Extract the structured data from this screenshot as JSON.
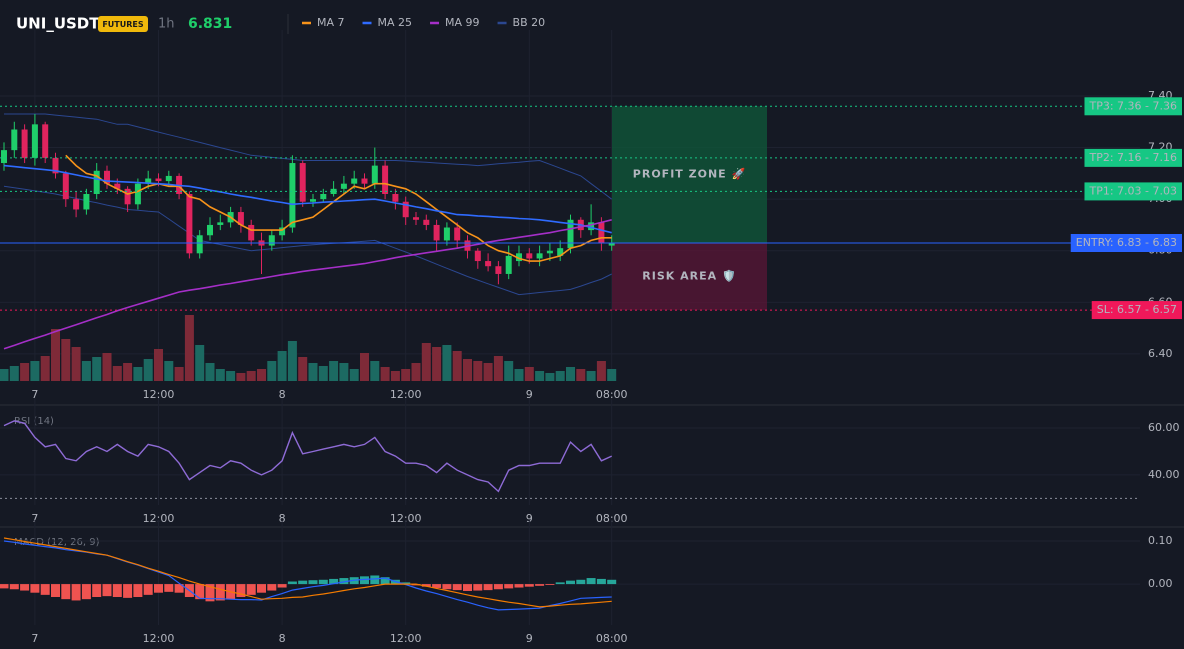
{
  "header": {
    "symbol": "UNI_USDT",
    "badge": "FUTURES",
    "interval": "1h",
    "price": 6.831
  },
  "chart_data": [
    {
      "type": "candlestick",
      "categories": [
        null,
        null,
        null,
        "7",
        null,
        null,
        null,
        null,
        null,
        null,
        null,
        null,
        null,
        null,
        null,
        "12:00",
        null,
        null,
        null,
        null,
        null,
        null,
        null,
        null,
        null,
        null,
        null,
        "8",
        null,
        null,
        null,
        null,
        null,
        null,
        null,
        null,
        null,
        null,
        null,
        "12:00",
        null,
        null,
        null,
        null,
        null,
        null,
        null,
        null,
        null,
        null,
        null,
        "9",
        null,
        null,
        null,
        null,
        null,
        null,
        null,
        "08:00"
      ],
      "open": [
        7.14,
        7.19,
        7.27,
        7.16,
        7.29,
        7.16,
        7.1,
        7.0,
        6.96,
        7.02,
        7.11,
        7.06,
        7.04,
        6.98,
        7.06,
        7.08,
        7.07,
        7.09,
        7.02,
        6.79,
        6.86,
        6.9,
        6.91,
        6.95,
        6.9,
        6.84,
        6.82,
        6.86,
        6.89,
        7.14,
        6.99,
        7.0,
        7.02,
        7.04,
        7.06,
        7.08,
        7.06,
        7.13,
        7.02,
        6.99,
        6.93,
        6.92,
        6.9,
        6.84,
        6.89,
        6.84,
        6.8,
        6.76,
        6.74,
        6.71,
        6.76,
        6.79,
        6.77,
        6.79,
        6.78,
        6.81,
        6.92,
        6.88,
        6.91,
        6.82
      ],
      "high": [
        7.22,
        7.3,
        7.29,
        7.33,
        7.3,
        7.18,
        7.11,
        7.03,
        7.04,
        7.14,
        7.13,
        7.08,
        7.05,
        7.08,
        7.11,
        7.1,
        7.11,
        7.1,
        7.03,
        6.88,
        6.93,
        6.94,
        6.97,
        6.97,
        6.92,
        6.87,
        6.88,
        6.92,
        7.17,
        7.15,
        7.02,
        7.04,
        7.07,
        7.09,
        7.11,
        7.1,
        7.2,
        7.15,
        7.04,
        7.01,
        6.95,
        6.94,
        6.92,
        6.91,
        6.91,
        6.86,
        6.81,
        6.79,
        6.76,
        6.82,
        6.82,
        6.81,
        6.82,
        6.83,
        6.84,
        6.94,
        6.93,
        6.98,
        6.93,
        6.86
      ],
      "low": [
        7.11,
        7.16,
        7.14,
        7.13,
        7.14,
        7.08,
        6.97,
        6.93,
        6.94,
        7.0,
        7.04,
        7.02,
        6.95,
        6.96,
        7.04,
        7.05,
        7.05,
        7.0,
        6.77,
        6.77,
        6.84,
        6.88,
        6.89,
        6.87,
        6.82,
        6.71,
        6.8,
        6.84,
        6.87,
        6.97,
        6.97,
        6.99,
        7.01,
        7.02,
        7.04,
        7.04,
        7.04,
        7.0,
        6.96,
        6.9,
        6.9,
        6.88,
        6.8,
        6.82,
        6.81,
        6.77,
        6.73,
        6.72,
        6.67,
        6.69,
        6.74,
        6.75,
        6.74,
        6.76,
        6.76,
        6.79,
        6.85,
        6.86,
        6.8,
        6.8
      ],
      "close": [
        7.19,
        7.27,
        7.16,
        7.29,
        7.16,
        7.1,
        7.0,
        6.96,
        7.02,
        7.11,
        7.06,
        7.04,
        6.98,
        7.06,
        7.08,
        7.07,
        7.09,
        7.02,
        6.79,
        6.86,
        6.9,
        6.91,
        6.95,
        6.9,
        6.84,
        6.82,
        6.86,
        6.89,
        7.14,
        6.99,
        7.0,
        7.02,
        7.04,
        7.06,
        7.08,
        7.06,
        7.13,
        7.02,
        6.99,
        6.93,
        6.92,
        6.9,
        6.84,
        6.89,
        6.84,
        6.8,
        6.76,
        6.74,
        6.71,
        6.78,
        6.79,
        6.77,
        6.79,
        6.8,
        6.81,
        6.92,
        6.88,
        6.91,
        6.83,
        6.83
      ],
      "up_color": "#1fcf6a",
      "down_color": "#e0245e",
      "series": [
        {
          "name": "MA 7",
          "color": "#f7931a",
          "values": [
            null,
            null,
            null,
            null,
            null,
            null,
            7.17,
            7.13,
            7.1,
            7.09,
            7.06,
            7.04,
            7.02,
            7.03,
            7.05,
            7.06,
            7.05,
            7.05,
            7.01,
            7.0,
            6.97,
            6.95,
            6.93,
            6.9,
            6.88,
            6.88,
            6.88,
            6.88,
            6.91,
            6.92,
            6.93,
            6.96,
            6.99,
            7.02,
            7.05,
            7.04,
            7.06,
            7.06,
            7.05,
            7.04,
            7.02,
            6.99,
            6.96,
            6.93,
            6.9,
            6.87,
            6.85,
            6.82,
            6.8,
            6.79,
            6.77,
            6.76,
            6.76,
            6.77,
            6.78,
            6.81,
            6.82,
            6.84,
            6.85,
            6.85
          ]
        },
        {
          "name": "MA 25",
          "color": "#2f6bff",
          "values": [
            7.13,
            7.126,
            7.122,
            7.118,
            7.114,
            7.11,
            7.102,
            7.094,
            7.086,
            7.078,
            7.07,
            7.068,
            7.066,
            7.064,
            7.062,
            7.06,
            7.057,
            7.053,
            7.05,
            7.043,
            7.035,
            7.028,
            7.02,
            7.013,
            7.007,
            7.0,
            6.993,
            6.987,
            6.98,
            6.983,
            6.985,
            6.988,
            6.99,
            6.993,
            6.995,
            6.998,
            7.0,
            6.993,
            6.985,
            6.978,
            6.97,
            6.963,
            6.955,
            6.948,
            6.94,
            6.938,
            6.935,
            6.933,
            6.93,
            6.928,
            6.925,
            6.923,
            6.92,
            6.915,
            6.91,
            6.905,
            6.9,
            6.89,
            6.88,
            6.87
          ]
        },
        {
          "name": "MA 99",
          "color": "#a52fc8",
          "values": [
            6.42,
            6.433,
            6.447,
            6.46,
            6.473,
            6.487,
            6.5,
            6.513,
            6.527,
            6.54,
            6.553,
            6.567,
            6.58,
            6.592,
            6.604,
            6.616,
            6.628,
            6.64,
            6.647,
            6.653,
            6.66,
            6.667,
            6.673,
            6.68,
            6.687,
            6.693,
            6.7,
            6.707,
            6.713,
            6.72,
            6.725,
            6.73,
            6.735,
            6.74,
            6.745,
            6.75,
            6.758,
            6.765,
            6.773,
            6.78,
            6.786,
            6.792,
            6.798,
            6.804,
            6.81,
            6.818,
            6.825,
            6.833,
            6.84,
            6.846,
            6.852,
            6.858,
            6.864,
            6.87,
            6.878,
            6.885,
            6.893,
            6.9,
            6.91,
            6.92
          ]
        }
      ],
      "bands": [
        {
          "name": "BB 20",
          "color": "#2b4790",
          "upper": [
            7.33,
            7.33,
            7.33,
            7.33,
            7.33,
            7.326,
            7.322,
            7.318,
            7.314,
            7.31,
            7.3,
            7.29,
            7.29,
            7.28,
            7.27,
            7.26,
            7.25,
            7.24,
            7.23,
            7.22,
            7.21,
            7.2,
            7.19,
            7.18,
            7.17,
            7.166,
            7.162,
            7.158,
            7.154,
            7.15,
            7.15,
            7.15,
            7.15,
            7.15,
            7.15,
            7.15,
            7.15,
            7.15,
            7.15,
            7.148,
            7.145,
            7.143,
            7.14,
            7.138,
            7.135,
            7.133,
            7.13,
            7.133,
            7.137,
            7.14,
            7.143,
            7.147,
            7.15,
            7.135,
            7.12,
            7.105,
            7.09,
            7.06,
            7.03,
            7.0
          ],
          "lower": [
            7.05,
            7.044,
            7.038,
            7.032,
            7.026,
            7.02,
            7.011,
            7.003,
            6.994,
            6.986,
            6.977,
            6.969,
            6.96,
            6.957,
            6.953,
            6.95,
            6.923,
            6.895,
            6.868,
            6.84,
            6.832,
            6.824,
            6.816,
            6.808,
            6.8,
            6.804,
            6.808,
            6.812,
            6.816,
            6.82,
            6.823,
            6.826,
            6.829,
            6.831,
            6.834,
            6.837,
            6.84,
            6.825,
            6.81,
            6.795,
            6.78,
            6.764,
            6.748,
            6.732,
            6.716,
            6.7,
            6.686,
            6.672,
            6.658,
            6.644,
            6.63,
            6.634,
            6.638,
            6.642,
            6.646,
            6.65,
            6.663,
            6.677,
            6.69,
            6.71
          ]
        }
      ],
      "volume": [
        12,
        15,
        18,
        20,
        25,
        52,
        42,
        34,
        20,
        24,
        28,
        15,
        18,
        14,
        22,
        32,
        20,
        14,
        66,
        36,
        18,
        12,
        10,
        8,
        10,
        12,
        20,
        30,
        40,
        24,
        18,
        15,
        20,
        18,
        12,
        28,
        20,
        14,
        10,
        12,
        18,
        38,
        34,
        36,
        30,
        22,
        20,
        18,
        25,
        20,
        12,
        14,
        10,
        8,
        10,
        14,
        12,
        10,
        20,
        12
      ],
      "volume_ylim": [
        0,
        80
      ],
      "volume_up_color": "#1c6a62",
      "volume_down_color": "#7e2a38",
      "ylim": [
        6.295,
        7.617
      ],
      "yticks": [
        {
          "value": 6.4,
          "label": "6.40"
        },
        {
          "value": 6.6,
          "label": "6.60"
        },
        {
          "value": 6.8,
          "label": "6.80"
        },
        {
          "value": 7,
          "label": "7.00"
        },
        {
          "value": 7.2,
          "label": "7.20"
        },
        {
          "value": 7.4,
          "label": "7.40"
        }
      ],
      "grid": true,
      "levels": [
        {
          "label": "TP3: 7.36 - 7.36",
          "value": 7.36,
          "color": "#16c784",
          "text_color": "#0b1a12",
          "style": "dotted"
        },
        {
          "label": "TP2: 7.16 - 7.16",
          "value": 7.16,
          "color": "#16c784",
          "text_color": "#0b1a12",
          "style": "dotted"
        },
        {
          "label": "TP1: 7.03 - 7.03",
          "value": 7.03,
          "color": "#16c784",
          "text_color": "#0b1a12",
          "style": "dotted"
        },
        {
          "label": "ENTRY: 6.83 - 6.83",
          "value": 6.83,
          "color": "#2962ff",
          "text_color": "#ffffff",
          "style": "solid"
        },
        {
          "label": "SL: 6.57 - 6.57",
          "value": 6.57,
          "color": "#f0185a",
          "text_color": "#ffffff",
          "style": "dotted"
        }
      ],
      "zones": [
        {
          "label": "PROFIT ZONE 🚀",
          "from": 6.83,
          "to": 7.36,
          "color": "#0f5a3a",
          "text_color": "#22c47a"
        },
        {
          "label": "RISK AREA 🛡️",
          "from": 6.57,
          "to": 6.83,
          "color": "#5a1636",
          "text_color": "#f0185a"
        }
      ]
    },
    {
      "type": "line",
      "title": "RSI (14)",
      "color": "#8e6bd6",
      "values": [
        61,
        63,
        62,
        56,
        52,
        53,
        47,
        46,
        50,
        52,
        50,
        53,
        50,
        48,
        53,
        52,
        50,
        45,
        38,
        41,
        44,
        43,
        46,
        45,
        42,
        40,
        42,
        46,
        58,
        49,
        50,
        51,
        52,
        53,
        52,
        53,
        56,
        50,
        48,
        45,
        45,
        44,
        41,
        45,
        42,
        40,
        38,
        37,
        33,
        42,
        44,
        44,
        45,
        45,
        45,
        54,
        50,
        53,
        46,
        48
      ],
      "ylim": [
        27.2,
        68.5
      ],
      "yticks": [
        {
          "value": 40,
          "label": "40.00"
        },
        {
          "value": 60,
          "label": "60.00"
        }
      ],
      "levels": [
        30
      ]
    },
    {
      "type": "macd",
      "title": "MACD (12, 26, 9)",
      "macd": {
        "color": "#2962ff",
        "values": [
          0.1,
          0.097,
          0.093,
          0.09,
          0.087,
          0.084,
          0.08,
          0.077,
          0.074,
          0.07,
          0.067,
          0.059,
          0.051,
          0.044,
          0.036,
          0.028,
          0.02,
          0.002,
          -0.015,
          -0.033,
          -0.034,
          -0.034,
          -0.035,
          -0.036,
          -0.036,
          -0.037,
          -0.029,
          -0.022,
          -0.014,
          -0.01,
          -0.006,
          -0.003,
          0.001,
          0.005,
          0.009,
          0.011,
          0.012,
          0.014,
          0.006,
          -0.001,
          -0.009,
          -0.016,
          -0.022,
          -0.029,
          -0.036,
          -0.042,
          -0.049,
          -0.055,
          -0.06,
          -0.059,
          -0.058,
          -0.057,
          -0.056,
          -0.05,
          -0.045,
          -0.039,
          -0.033,
          -0.032,
          -0.031,
          -0.03
        ]
      },
      "signal": {
        "color": "#f57c00",
        "values": [
          0.107,
          0.103,
          0.099,
          0.095,
          0.091,
          0.087,
          0.083,
          0.079,
          0.075,
          0.071,
          0.067,
          0.06,
          0.052,
          0.045,
          0.037,
          0.03,
          0.022,
          0.015,
          0.007,
          0,
          -0.006,
          -0.012,
          -0.018,
          -0.023,
          -0.029,
          -0.035,
          -0.034,
          -0.033,
          -0.031,
          -0.03,
          -0.026,
          -0.023,
          -0.019,
          -0.015,
          -0.011,
          -0.008,
          -0.004,
          0,
          0,
          0,
          0,
          -0.005,
          -0.01,
          -0.015,
          -0.02,
          -0.025,
          -0.03,
          -0.034,
          -0.038,
          -0.042,
          -0.045,
          -0.049,
          -0.053,
          -0.051,
          -0.049,
          -0.047,
          -0.046,
          -0.044,
          -0.042,
          -0.04
        ]
      },
      "histogram": {
        "up_color": "#26a69a",
        "down_color": "#ef5350",
        "values": [
          -0.01,
          -0.012,
          -0.015,
          -0.02,
          -0.025,
          -0.03,
          -0.035,
          -0.038,
          -0.035,
          -0.03,
          -0.028,
          -0.03,
          -0.032,
          -0.03,
          -0.025,
          -0.02,
          -0.018,
          -0.02,
          -0.03,
          -0.035,
          -0.04,
          -0.038,
          -0.035,
          -0.03,
          -0.025,
          -0.02,
          -0.015,
          -0.008,
          0.006,
          0.008,
          0.009,
          0.01,
          0.012,
          0.014,
          0.016,
          0.018,
          0.02,
          0.016,
          0.01,
          0.004,
          -0.003,
          -0.006,
          -0.009,
          -0.012,
          -0.014,
          -0.016,
          -0.015,
          -0.014,
          -0.012,
          -0.01,
          -0.008,
          -0.006,
          -0.004,
          -0.002,
          0.004,
          0.008,
          0.01,
          0.014,
          0.012,
          0.01
        ]
      },
      "ylim": [
        -0.095,
        0.1256
      ],
      "yticks": [
        {
          "value": 0,
          "label": "0.00"
        },
        {
          "value": 0.1,
          "label": "0.10"
        }
      ]
    }
  ]
}
